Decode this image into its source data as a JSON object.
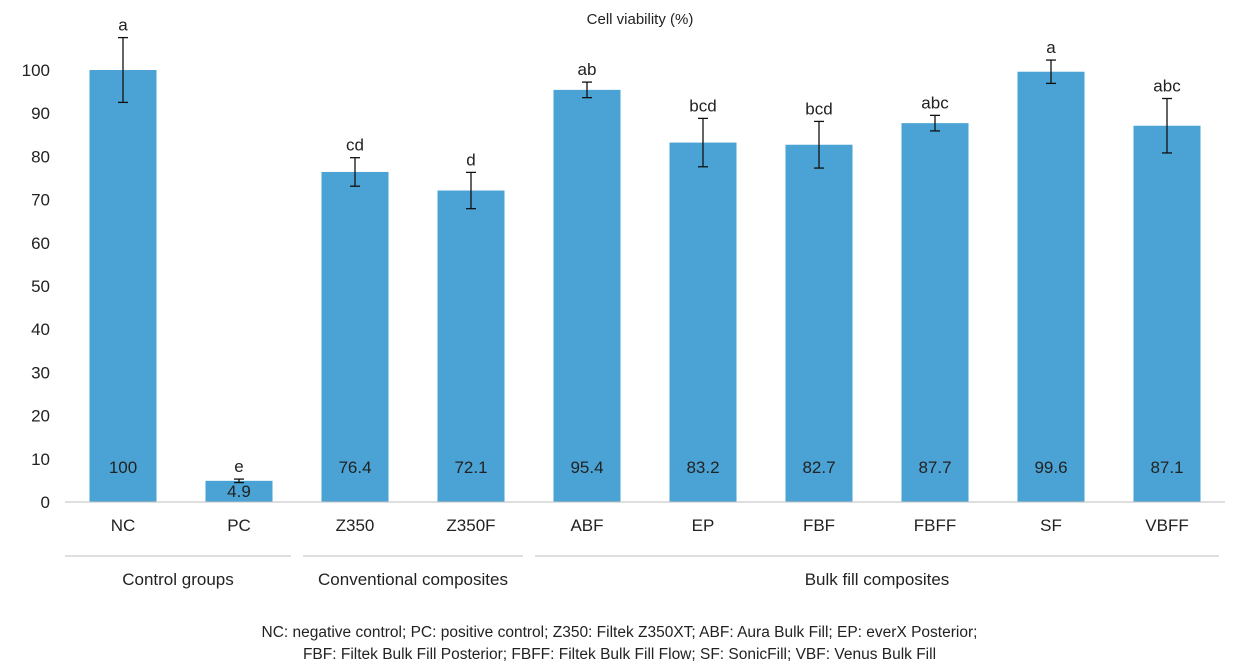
{
  "chart_data": {
    "type": "bar",
    "title": "Cell viability (%)",
    "xlabel": "",
    "ylabel": "",
    "ylim": [
      0,
      100
    ],
    "yticks": [
      0,
      10,
      20,
      30,
      40,
      50,
      60,
      70,
      80,
      90,
      100
    ],
    "bar_color": "#4aa3d4",
    "categories": [
      "NC",
      "PC",
      "Z350",
      "Z350F",
      "ABF",
      "EP",
      "FBF",
      "FBFF",
      "SF",
      "VBFF"
    ],
    "values": [
      100,
      4.9,
      76.4,
      72.1,
      95.4,
      83.2,
      82.7,
      87.7,
      99.6,
      87.1
    ],
    "value_labels": [
      "100",
      "4.9",
      "76.4",
      "72.1",
      "95.4",
      "83.2",
      "82.7",
      "87.7",
      "99.6",
      "87.1"
    ],
    "error": [
      7.5,
      0.4,
      3.3,
      4.2,
      1.8,
      5.6,
      5.4,
      1.8,
      2.7,
      6.3
    ],
    "significance": [
      "a",
      "e",
      "cd",
      "d",
      "ab",
      "bcd",
      "bcd",
      "abc",
      "a",
      "abc"
    ],
    "groups": [
      {
        "label": "Control groups",
        "start": 0,
        "end": 1
      },
      {
        "label": "Conventional composites",
        "start": 2,
        "end": 3
      },
      {
        "label": "Bulk fill composites",
        "start": 4,
        "end": 9
      }
    ]
  },
  "footnote": {
    "line1": "NC: negative control; PC: positive control; Z350: Filtek Z350XT; ABF: Aura Bulk Fill; EP: everX Posterior;",
    "line2": "FBF: Filtek Bulk Fill Posterior; FBFF: Filtek Bulk Fill Flow; SF: SonicFill; VBF: Venus Bulk Fill"
  }
}
